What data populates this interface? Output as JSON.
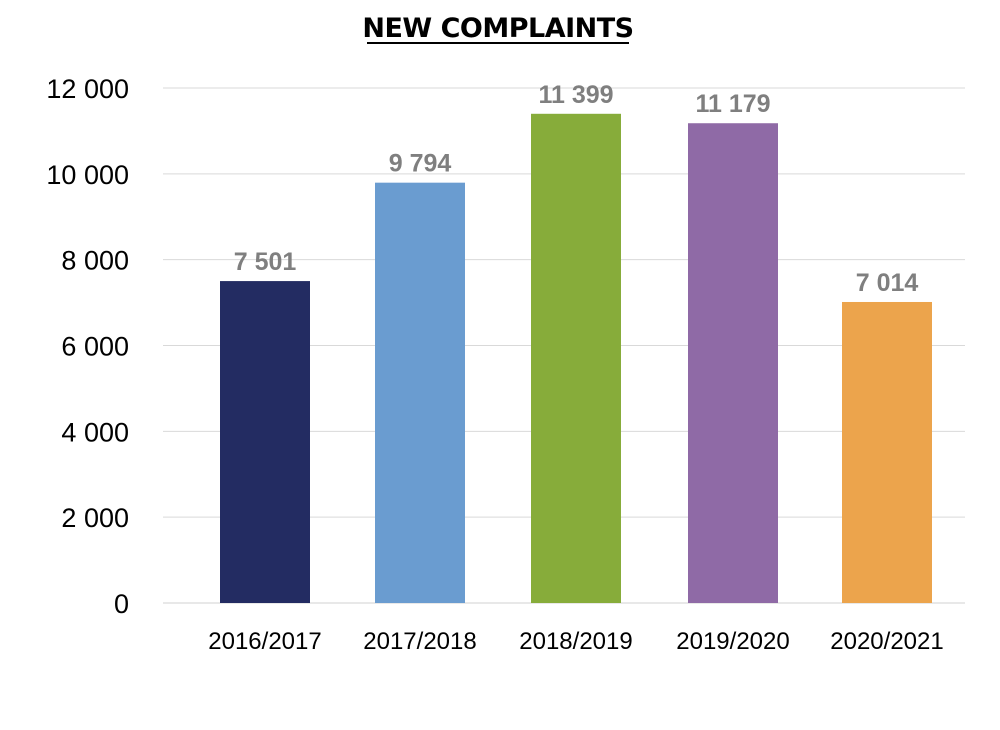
{
  "chart_data": {
    "type": "bar",
    "title": "NEW COMPLAINTS",
    "xlabel": "",
    "ylabel": "",
    "categories": [
      "2016/2017",
      "2017/2018",
      "2018/2019",
      "2019/2020",
      "2020/2021"
    ],
    "values": [
      7501,
      9794,
      11399,
      11179,
      7014
    ],
    "value_labels": [
      "7 501",
      "9 794",
      "11 399",
      "11 179",
      "7 014"
    ],
    "colors": [
      "#232c62",
      "#6a9cd0",
      "#87ac3a",
      "#8f6aa6",
      "#eca44c"
    ],
    "ylim": [
      0,
      12000
    ],
    "yticks": [
      0,
      2000,
      4000,
      6000,
      8000,
      10000,
      12000
    ],
    "ytick_labels": [
      "0",
      "2 000",
      "4 000",
      "6 000",
      "8 000",
      "10 000",
      "12 000"
    ],
    "grid": true,
    "legend": "none"
  }
}
